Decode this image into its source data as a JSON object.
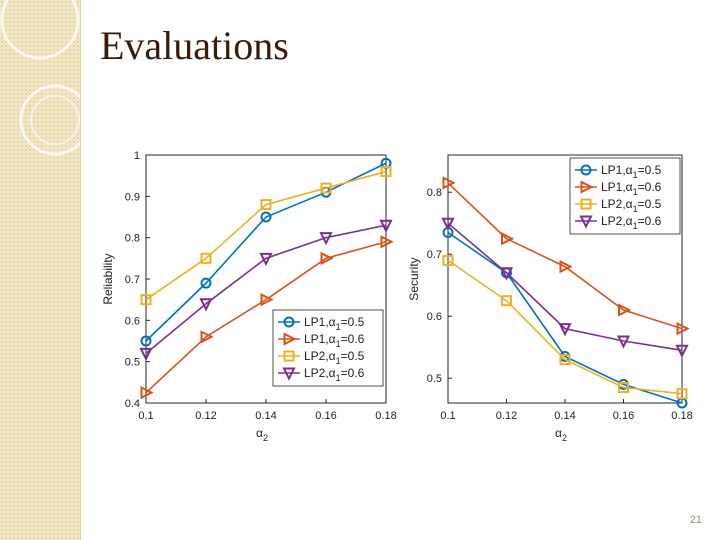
{
  "slide": {
    "title": "Evaluations",
    "page_number": "21"
  },
  "chart_data": [
    {
      "type": "line",
      "x": [
        0.1,
        0.12,
        0.14,
        0.16,
        0.18
      ],
      "xticks": [
        "0.1",
        "0.12",
        "0.14",
        "0.16",
        "0.18"
      ],
      "yticks": [
        "0.4",
        "0.5",
        "0.6",
        "0.7",
        "0.8",
        "0.9",
        "1"
      ],
      "xlabel_base": "α",
      "xlabel_sub": "2",
      "ylabel": "Reliability",
      "xlim": [
        0.1,
        0.18
      ],
      "ylim": [
        0.4,
        1.0
      ],
      "grid": false,
      "legend_position": "bottom-right",
      "series": [
        {
          "name_base": "LP1,α",
          "name_sub": "1",
          "name_tail": "=0.5",
          "marker": "circle",
          "color": "#0072bd",
          "values": [
            0.55,
            0.69,
            0.85,
            0.91,
            0.98
          ]
        },
        {
          "name_base": "LP1,α",
          "name_sub": "1",
          "name_tail": "=0.6",
          "marker": "triangle-right",
          "color": "#d95319",
          "values": [
            0.425,
            0.56,
            0.65,
            0.75,
            0.79
          ]
        },
        {
          "name_base": "LP2,α",
          "name_sub": "1",
          "name_tail": "=0.5",
          "marker": "square",
          "color": "#edb120",
          "values": [
            0.65,
            0.75,
            0.88,
            0.92,
            0.96
          ]
        },
        {
          "name_base": "LP2,α",
          "name_sub": "1",
          "name_tail": "=0.6",
          "marker": "triangle-down",
          "color": "#7e2f8e",
          "values": [
            0.52,
            0.64,
            0.75,
            0.8,
            0.83
          ]
        }
      ]
    },
    {
      "type": "line",
      "x": [
        0.1,
        0.12,
        0.14,
        0.16,
        0.18
      ],
      "xticks": [
        "0.1",
        "0.12",
        "0.14",
        "0.16",
        "0.18"
      ],
      "yticks": [
        "0.5",
        "0.6",
        "0.7",
        "0.8"
      ],
      "xlabel_base": "α",
      "xlabel_sub": "2",
      "ylabel": "Security",
      "xlim": [
        0.1,
        0.18
      ],
      "ylim": [
        0.46,
        0.86
      ],
      "grid": false,
      "legend_position": "top-right",
      "series": [
        {
          "name_base": "LP1,α",
          "name_sub": "1",
          "name_tail": "=0.5",
          "marker": "circle",
          "color": "#0072bd",
          "values": [
            0.735,
            0.67,
            0.535,
            0.49,
            0.46
          ]
        },
        {
          "name_base": "LP1,α",
          "name_sub": "1",
          "name_tail": "=0.6",
          "marker": "triangle-right",
          "color": "#d95319",
          "values": [
            0.815,
            0.725,
            0.68,
            0.61,
            0.58
          ]
        },
        {
          "name_base": "LP2,α",
          "name_sub": "1",
          "name_tail": "=0.5",
          "marker": "square",
          "color": "#edb120",
          "values": [
            0.69,
            0.625,
            0.53,
            0.485,
            0.475
          ]
        },
        {
          "name_base": "LP2,α",
          "name_sub": "1",
          "name_tail": "=0.6",
          "marker": "triangle-down",
          "color": "#7e2f8e",
          "values": [
            0.75,
            0.67,
            0.58,
            0.56,
            0.545
          ]
        }
      ]
    }
  ]
}
